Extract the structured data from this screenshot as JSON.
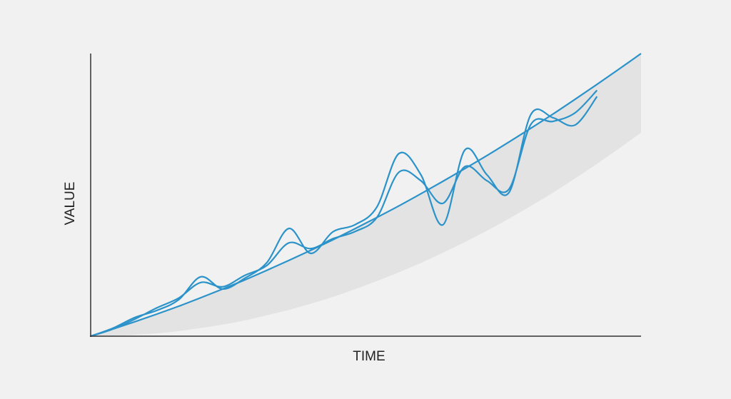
{
  "chart_data": {
    "type": "line",
    "x_label": "TIME",
    "y_label": "VALUE",
    "xlim": [
      0,
      100
    ],
    "ylim": [
      0,
      100
    ],
    "grid": false,
    "smooth": true,
    "x": [
      0,
      4,
      8,
      12,
      16,
      20,
      24,
      28,
      32,
      36,
      40,
      44,
      48,
      52,
      56,
      60,
      64,
      68,
      72,
      76,
      80,
      84,
      88,
      92,
      96,
      100
    ],
    "series": [
      {
        "color": "#2b93c9",
        "values": [
          0,
          2.5,
          5.1,
          7.8,
          10.6,
          13.6,
          16.7,
          19.9,
          23.3,
          26.8,
          30.4,
          34.1,
          38,
          42,
          46.1,
          50.4,
          54.8,
          59.3,
          63.9,
          68.7,
          73.6,
          78.6,
          83.8,
          89.1,
          94.5,
          100
        ]
      },
      {
        "color": "#2b93c9",
        "values": [
          0,
          2.8,
          6.6,
          9.1,
          12.9,
          21,
          16.7,
          20.5,
          26,
          38.1,
          29.3,
          36.9,
          39.4,
          45.7,
          64.6,
          57.1,
          39.4,
          65.9,
          57.1,
          50.8,
          78.5,
          77.3,
          74.7,
          84.8,
          null,
          null
        ]
      },
      {
        "color": "#2b93c9",
        "values": [
          0,
          2.5,
          6,
          10,
          13.5,
          19,
          17.5,
          21.5,
          25,
          33,
          31,
          34.5,
          37,
          42,
          58,
          55,
          47,
          60,
          55,
          52,
          75,
          76,
          79,
          87,
          null,
          null
        ]
      },
      {
        "color": "#e3e3e3",
        "values": [
          0,
          0.1,
          0.5,
          1.0,
          1.8,
          2.9,
          4.1,
          5.6,
          7.4,
          9.3,
          11.5,
          13.9,
          16.6,
          19.5,
          22.6,
          25.9,
          29.5,
          33.3,
          37.3,
          41.6,
          46.1,
          50.8,
          55.8,
          61.0,
          66.4,
          72.0
        ]
      }
    ]
  }
}
